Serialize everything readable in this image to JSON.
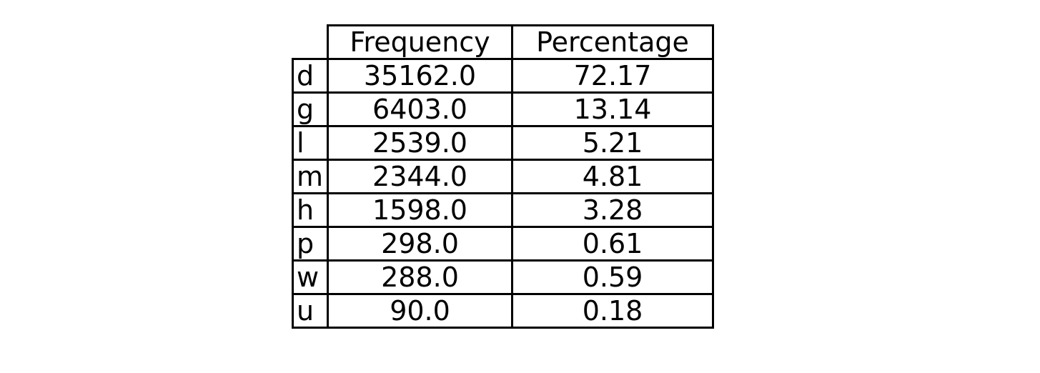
{
  "chart_data": {
    "type": "table",
    "columns": [
      "Frequency",
      "Percentage"
    ],
    "rows": [
      {
        "label": "d",
        "values": [
          "35162.0",
          "72.17"
        ]
      },
      {
        "label": "g",
        "values": [
          "6403.0",
          "13.14"
        ]
      },
      {
        "label": "l",
        "values": [
          "2539.0",
          "5.21"
        ]
      },
      {
        "label": "m",
        "values": [
          "2344.0",
          "4.81"
        ]
      },
      {
        "label": "h",
        "values": [
          "1598.0",
          "3.28"
        ]
      },
      {
        "label": "p",
        "values": [
          "298.0",
          "0.61"
        ]
      },
      {
        "label": "w",
        "values": [
          "288.0",
          "0.59"
        ]
      },
      {
        "label": "u",
        "values": [
          "90.0",
          "0.18"
        ]
      }
    ]
  }
}
